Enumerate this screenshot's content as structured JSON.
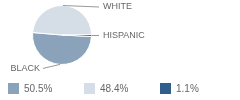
{
  "chart_data": {
    "type": "pie",
    "categories": [
      "BLACK",
      "WHITE",
      "HISPANIC"
    ],
    "values": [
      50.5,
      48.4,
      1.1
    ],
    "value_labels": [
      "50.5%",
      "48.4%",
      "1.1%"
    ],
    "colors": [
      "#8aa3ba",
      "#d5dde7",
      "#2f5f8a"
    ]
  }
}
